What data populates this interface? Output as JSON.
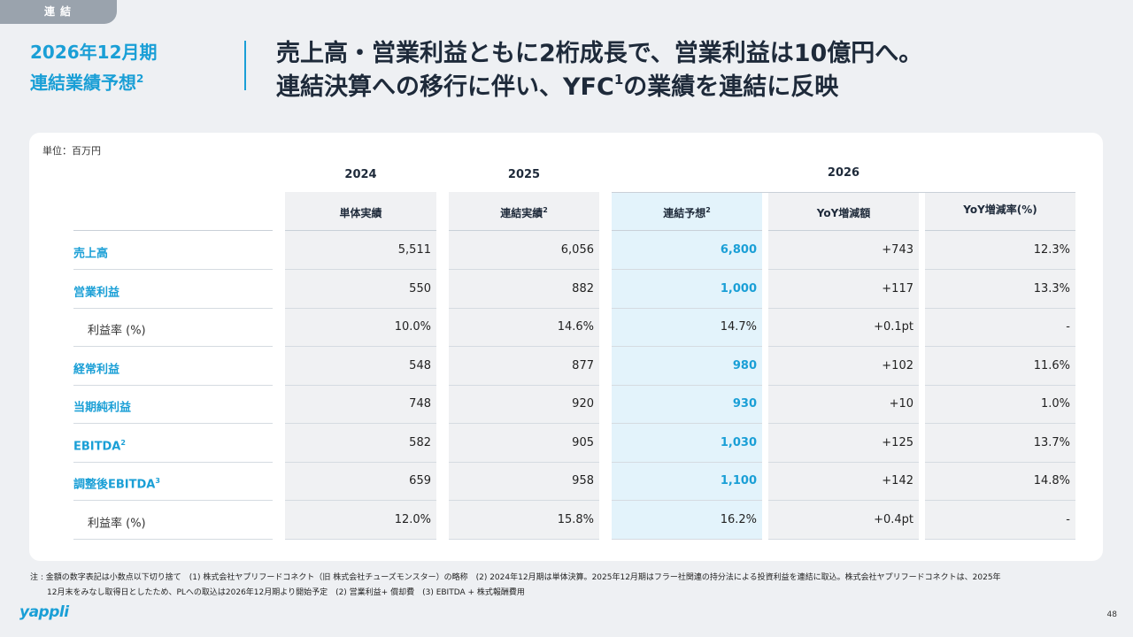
{
  "tag": "連結",
  "left_title": {
    "line1": "2026年12月期",
    "line2": "連結業績予想",
    "sup": "2"
  },
  "headline": {
    "line1": "売上高・営業利益ともに2桁成長で、営業利益は10億円へ。",
    "line2a": "連結決算への移行に伴い、YFC",
    "line2sup": "1",
    "line2b": "の業績を連結に反映"
  },
  "unit": "単位：百万円",
  "years": [
    "2024",
    "2025",
    "2026"
  ],
  "subheaders": [
    {
      "text": "単体実績",
      "sup": ""
    },
    {
      "text": "連結実績",
      "sup": "2"
    },
    {
      "text": "連結予想",
      "sup": "2"
    },
    {
      "text": "YoY増減額",
      "sup": ""
    },
    {
      "text": "YoY増減率(%)",
      "sup": ""
    }
  ],
  "rows": [
    {
      "label": "売上高",
      "sup": "",
      "plain": false,
      "values": [
        "5,511",
        "6,056",
        "6,800",
        "+743",
        "12.3%"
      ]
    },
    {
      "label": "営業利益",
      "sup": "",
      "plain": false,
      "values": [
        "550",
        "882",
        "1,000",
        "+117",
        "13.3%"
      ]
    },
    {
      "label": "利益率 (%)",
      "sup": "",
      "plain": true,
      "values": [
        "10.0%",
        "14.6%",
        "14.7%",
        "+0.1pt",
        "-"
      ]
    },
    {
      "label": "経常利益",
      "sup": "",
      "plain": false,
      "values": [
        "548",
        "877",
        "980",
        "+102",
        "11.6%"
      ]
    },
    {
      "label": "当期純利益",
      "sup": "",
      "plain": false,
      "values": [
        "748",
        "920",
        "930",
        "+10",
        "1.0%"
      ]
    },
    {
      "label": "EBITDA",
      "sup": "2",
      "plain": false,
      "values": [
        "582",
        "905",
        "1,030",
        "+125",
        "13.7%"
      ]
    },
    {
      "label": "調整後EBITDA",
      "sup": "3",
      "plain": false,
      "values": [
        "659",
        "958",
        "1,100",
        "+142",
        "14.8%"
      ]
    },
    {
      "label": "利益率 (%)",
      "sup": "",
      "plain": true,
      "values": [
        "12.0%",
        "15.8%",
        "16.2%",
        "+0.4pt",
        "-"
      ]
    }
  ],
  "notes": {
    "line1": "注 : 金額の数字表記は小数点以下切り捨て　(1) 株式会社ヤプリフードコネクト（旧 株式会社チューズモンスター）の略称　(2) 2024年12月期は単体決算。2025年12月期はフラー社関連の持分法による投資利益を連結に取込。株式会社ヤプリフードコネクトは、2025年",
    "line2": "12月末をみなし取得日としたため、PLへの取込は2026年12月期より開始予定　(2) 営業利益+ 償却費　(3) EBITDA + 株式報酬費用"
  },
  "logo": "yappli",
  "page_number": "48"
}
